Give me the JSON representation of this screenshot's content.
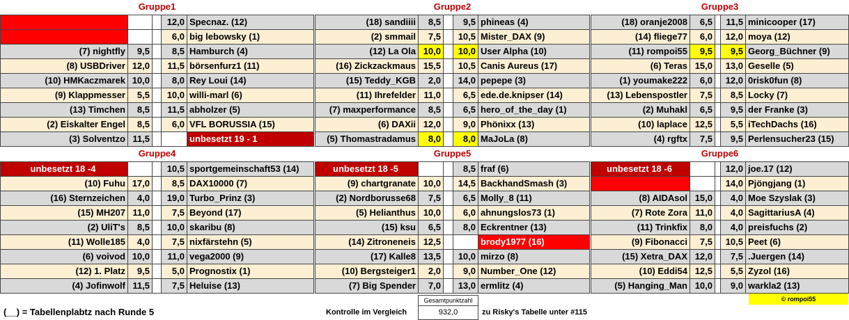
{
  "groups": [
    {
      "title": "Gruppe1",
      "rows": [
        [
          null,
          null,
          "12,0",
          "Specnaz. (12)"
        ],
        [
          null,
          null,
          "6,0",
          "big lebowsky (1)"
        ],
        [
          "(7) nightfly",
          "9,5",
          "8,5",
          "Hamburch (4)"
        ],
        [
          "(8) USBDriver",
          "12,0",
          "11,5",
          "börsenfurz1 (11)"
        ],
        [
          "(10) HMKaczmarek",
          "10,0",
          "8,0",
          "Rey Loui (14)"
        ],
        [
          "(9) Klappmesser",
          "5,5",
          "10,0",
          "willi-marl (6)"
        ],
        [
          "(13) Timchen",
          "8,5",
          "11,5",
          "abholzer (5)"
        ],
        [
          "(2) Eiskalter Engel",
          "8,5",
          "6,0",
          "VFL BORUSSIA (15)"
        ],
        [
          "(3) Solventzo",
          "11,5",
          null,
          "unbesetzt 19 - 1"
        ]
      ]
    },
    {
      "title": "Gruppe2",
      "rows": [
        [
          "(18) sandiiii",
          "8,5",
          "9,5",
          "phineas (4)"
        ],
        [
          "(2) smmail",
          "7,5",
          "10,5",
          "Mister_DAX (9)"
        ],
        [
          "(12) La Ola",
          "10,0",
          "10,0",
          "User Alpha (10)"
        ],
        [
          "(16) Zickzackmaus",
          "15,5",
          "10,5",
          "Canis Aureus (17)"
        ],
        [
          "(15) Teddy_KGB",
          "2,0",
          "14,0",
          "pepepe (3)"
        ],
        [
          "(11) Ihrefelder",
          "11,0",
          "6,5",
          "ede.de.knipser (14)"
        ],
        [
          "(7) maxperformance",
          "8,5",
          "6,5",
          "hero_of_the_day (1)"
        ],
        [
          "(6) DAXii",
          "12,0",
          "9,0",
          "Phönixx (13)"
        ],
        [
          "(5) Thomastradamus",
          "8,0",
          "8,0",
          "MaJoLa (8)"
        ]
      ]
    },
    {
      "title": "Gruppe3",
      "rows": [
        [
          "(18) oranje2008",
          "6,5",
          "11,5",
          "minicooper (17)"
        ],
        [
          "(14) fliege77",
          "6,0",
          "12,0",
          "moya (12)"
        ],
        [
          "(11) rompoi55",
          "9,5",
          "9,5",
          "Georg_Büchner (9)"
        ],
        [
          "(6) Teras",
          "15,0",
          "13,0",
          "Geselle (5)"
        ],
        [
          "(1) youmake222",
          "6,0",
          "12,0",
          "0risk0fun (8)"
        ],
        [
          "(13) Lebenspostler",
          "7,5",
          "8,5",
          "Locky (7)"
        ],
        [
          "(2) Muhakl",
          "6,5",
          "9,5",
          "der Franke (3)"
        ],
        [
          "(10) laplace",
          "12,5",
          "5,5",
          "iTechDachs (16)"
        ],
        [
          "(4) rgftx",
          "7,5",
          "9,5",
          "Perlensucher23 (15)"
        ]
      ]
    },
    {
      "title": "Gruppe4",
      "rows": [
        [
          "unbesetzt 18 -4",
          null,
          "10,5",
          "sportgemeinschaft53 (14)"
        ],
        [
          "(10) Fuhu",
          "17,0",
          "8,5",
          "DAX10000 (7)"
        ],
        [
          "(16) Sternzeichen",
          "4,0",
          "19,0",
          "Turbo_Prinz (3)"
        ],
        [
          "(15) MH207",
          "11,0",
          "7,5",
          "Beyond (17)"
        ],
        [
          "(2) UliT's",
          "8,5",
          "10,0",
          "skaribu (8)"
        ],
        [
          "(11) Wolle185",
          "4,0",
          "7,5",
          "nixfärstehn (5)"
        ],
        [
          "(6) voivod",
          "10,0",
          "11,0",
          "vega2000 (9)"
        ],
        [
          "(12) 1. Platz",
          "9,5",
          "5,0",
          "Prognostix (1)"
        ],
        [
          "(4) Jofinwolf",
          "11,5",
          "7,5",
          "Heluise (13)"
        ]
      ]
    },
    {
      "title": "Gruppe5",
      "rows": [
        [
          "unbesetzt 18 -5",
          null,
          "8,5",
          "fraf (6)"
        ],
        [
          "(9) chartgranate",
          "10,0",
          "14,5",
          "BackhandSmash (3)"
        ],
        [
          "(2) Nordborusse68",
          "7,5",
          "6,5",
          "Molly_8 (11)"
        ],
        [
          "(5) Helianthus",
          "10,0",
          "6,0",
          "ahnungslos73 (1)"
        ],
        [
          "(15) ksu",
          "6,5",
          "8,0",
          "Eckrentner (13)"
        ],
        [
          "(14) Zitroneneis",
          "12,5",
          null,
          "brody1977 (16)"
        ],
        [
          "(17) Kalle8",
          "13,5",
          "10,0",
          "mirzo (8)"
        ],
        [
          "(10) Bergsteiger1",
          "2,0",
          "9,0",
          "Number_One (12)"
        ],
        [
          "(7) Big Spender",
          "7,0",
          "13,0",
          "ermlitz (4)"
        ]
      ]
    },
    {
      "title": "Gruppe6",
      "rows": [
        [
          "unbesetzt 18 -6",
          null,
          "12,0",
          "joe.17 (12)"
        ],
        [
          null,
          null,
          "14,0",
          "Pjöngjang (1)"
        ],
        [
          "(8) AIDAsol",
          "15,0",
          "4,0",
          "Moe Szyslak (3)"
        ],
        [
          "(7) Rote Zora",
          "11,0",
          "4,0",
          "SagittariusA (4)"
        ],
        [
          "(11) Trinkfix",
          "8,0",
          "4,0",
          "preisfuchs (2)"
        ],
        [
          "(9) Fibonacci",
          "7,5",
          "10,5",
          "Peet (6)"
        ],
        [
          "(15) Xetra_DAX",
          "12,0",
          "7,5",
          ".Juergen (14)"
        ],
        [
          "(10) Eddi54",
          "12,5",
          "5,5",
          "Zyzol (16)"
        ],
        [
          "(5) Hanging_Man",
          "10,0",
          "9,0",
          "warkla2 (13)"
        ]
      ]
    }
  ],
  "footer": {
    "legend": "(__) = Tabellenplabtz nach Runde 5",
    "check_label": "Kontrolle im Vergleich",
    "total_header": "Gesamtpunktzahl",
    "total": "932,0",
    "note": "zu Risky's Tabelle unter #115",
    "copyright": "© rompoi55"
  }
}
